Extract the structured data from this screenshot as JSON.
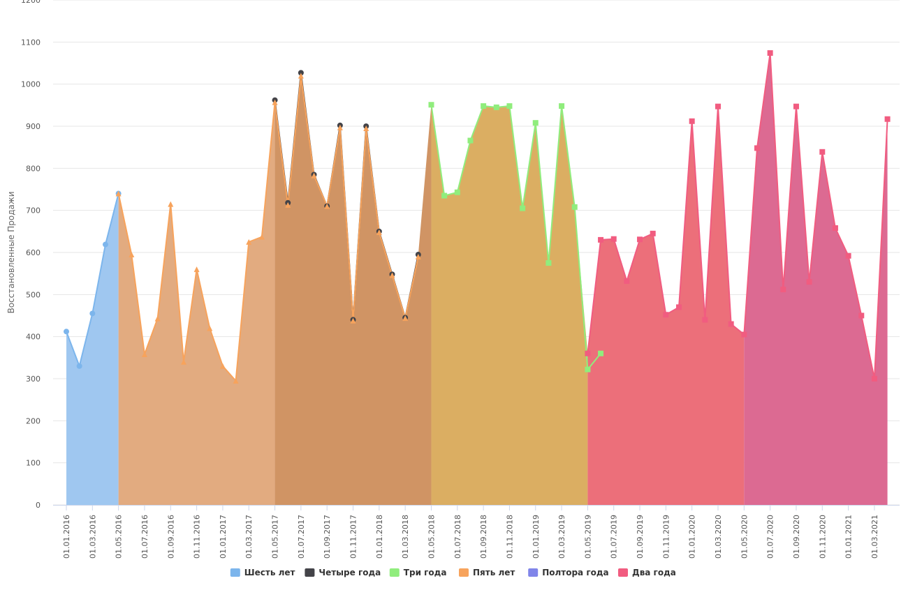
{
  "chart_data": {
    "type": "area",
    "ylabel": "Восстановленные Продажи",
    "ylim": [
      0,
      1200
    ],
    "yticks": [
      "0",
      "100",
      "200",
      "300",
      "400",
      "500",
      "600",
      "700",
      "800",
      "900",
      "1000",
      "1100",
      "1200"
    ],
    "xticks": [
      "01.01.2016",
      "01.03.2016",
      "01.05.2016",
      "01.07.2016",
      "01.09.2016",
      "01.11.2016",
      "01.01.2017",
      "01.03.2017",
      "01.05.2017",
      "01.07.2017",
      "01.09.2017",
      "01.11.2017",
      "01.01.2018",
      "01.03.2018",
      "01.05.2018",
      "01.07.2018",
      "01.09.2018",
      "01.11.2018",
      "01.01.2019",
      "01.03.2019",
      "01.05.2019",
      "01.07.2019",
      "01.09.2019",
      "01.11.2019",
      "01.01.2020",
      "01.03.2020",
      "01.05.2020",
      "01.07.2020",
      "01.09.2020",
      "01.11.2020",
      "01.01.2021",
      "01.03.2021"
    ],
    "x": [
      "01.01.2016",
      "01.02.2016",
      "01.03.2016",
      "01.04.2016",
      "01.05.2016",
      "01.06.2016",
      "01.07.2016",
      "01.08.2016",
      "01.09.2016",
      "01.10.2016",
      "01.11.2016",
      "01.12.2016",
      "01.01.2017",
      "01.02.2017",
      "01.03.2017",
      "01.04.2017",
      "01.05.2017",
      "01.06.2017",
      "01.07.2017",
      "01.08.2017",
      "01.09.2017",
      "01.10.2017",
      "01.11.2017",
      "01.12.2017",
      "01.01.2018",
      "01.02.2018",
      "01.03.2018",
      "01.04.2018",
      "01.05.2018",
      "01.06.2018",
      "01.07.2018",
      "01.08.2018",
      "01.09.2018",
      "01.10.2018",
      "01.11.2018",
      "01.12.2018",
      "01.01.2019",
      "01.02.2019",
      "01.03.2019",
      "01.04.2019",
      "01.05.2019",
      "01.06.2019",
      "01.07.2019",
      "01.08.2019",
      "01.09.2019",
      "01.10.2019",
      "01.11.2019",
      "01.12.2019",
      "01.01.2020",
      "01.02.2020",
      "01.03.2020",
      "01.04.2020",
      "01.05.2020",
      "01.06.2020",
      "01.07.2020",
      "01.08.2020",
      "01.09.2020",
      "01.10.2020",
      "01.11.2020",
      "01.12.2020",
      "01.01.2021",
      "01.02.2021",
      "01.03.2021",
      "01.04.2021"
    ],
    "grid": true,
    "legend_position": "bottom",
    "series": [
      {
        "name": "Шесть лет",
        "color": "#7cb5ec",
        "fill": "#9fc7f0",
        "marker": "circle",
        "values": [
          412,
          330,
          455,
          619,
          740,
          null,
          null,
          null,
          null,
          null,
          null,
          null,
          null,
          null,
          null,
          null,
          null,
          null,
          null,
          null,
          null,
          null,
          null,
          null,
          null,
          null,
          null,
          null,
          null,
          null,
          null,
          null,
          null,
          null,
          null,
          null,
          null,
          null,
          null,
          null,
          null,
          null,
          null,
          null,
          null,
          null,
          null,
          null,
          null,
          null,
          null,
          null,
          null,
          null,
          null,
          null,
          null,
          null,
          null,
          null,
          null,
          null,
          null,
          null
        ]
      },
      {
        "name": "Четыре года",
        "color": "#434348",
        "fill": "#d09464",
        "marker": "circle",
        "values": [
          null,
          null,
          null,
          null,
          null,
          null,
          null,
          null,
          null,
          null,
          null,
          null,
          null,
          null,
          null,
          null,
          962,
          718,
          1027,
          785,
          710,
          902,
          440,
          900,
          650,
          548,
          445,
          595,
          null,
          null,
          null,
          null,
          null,
          null,
          null,
          null,
          null,
          null,
          null,
          null,
          null,
          null,
          null,
          null,
          null,
          null,
          null,
          null,
          null,
          null,
          null,
          null,
          null,
          null,
          null,
          null,
          null,
          null,
          null,
          null,
          null,
          null,
          null,
          null
        ]
      },
      {
        "name": "Три года",
        "color": "#90ed7d",
        "fill": "#dbae62",
        "marker": "square",
        "values": [
          null,
          null,
          null,
          null,
          null,
          null,
          null,
          null,
          null,
          null,
          null,
          null,
          null,
          null,
          null,
          null,
          null,
          null,
          null,
          null,
          null,
          null,
          null,
          null,
          null,
          null,
          null,
          null,
          951,
          735,
          743,
          866,
          948,
          945,
          948,
          705,
          908,
          575,
          948,
          708,
          322,
          360,
          null,
          null,
          null,
          null,
          null,
          null,
          null,
          null,
          null,
          null,
          null,
          null,
          null,
          null,
          null,
          null,
          null,
          null,
          null,
          null,
          null,
          null
        ]
      },
      {
        "name": "Пять лет",
        "color": "#f7a35c",
        "fill": "#e2ab80",
        "marker": "triangle",
        "values": [
          null,
          null,
          null,
          null,
          740,
          595,
          358,
          443,
          715,
          340,
          560,
          420,
          330,
          295,
          625,
          637,
          957,
          713,
          1020,
          783,
          710,
          897,
          438,
          895,
          648,
          546,
          444,
          590,
          null,
          null,
          null,
          null,
          null,
          null,
          null,
          null,
          null,
          null,
          null,
          null,
          null,
          null,
          null,
          null,
          null,
          null,
          null,
          null,
          null,
          null,
          null,
          null,
          null,
          null,
          null,
          null,
          null,
          null,
          null,
          null,
          null,
          null,
          null,
          null
        ]
      },
      {
        "name": "Полтора года",
        "color": "#8085e9",
        "fill": "#8085e9",
        "marker": "diamond",
        "values": [
          null,
          null,
          null,
          null,
          null,
          null,
          null,
          null,
          null,
          null,
          null,
          null,
          null,
          null,
          null,
          null,
          null,
          null,
          null,
          null,
          null,
          null,
          null,
          null,
          null,
          null,
          null,
          null,
          null,
          null,
          null,
          null,
          null,
          null,
          null,
          null,
          null,
          null,
          null,
          null,
          null,
          null,
          null,
          null,
          null,
          null,
          null,
          null,
          null,
          null,
          null,
          null,
          null,
          null,
          null,
          null,
          null,
          null,
          null,
          null,
          null,
          null,
          null,
          null
        ]
      },
      {
        "name": "Два года",
        "color": "#f15c80",
        "fill": "#ec6f7a",
        "marker": "square",
        "values": [
          null,
          null,
          null,
          null,
          null,
          null,
          null,
          null,
          null,
          null,
          null,
          null,
          null,
          null,
          null,
          null,
          null,
          null,
          null,
          null,
          null,
          null,
          null,
          null,
          null,
          null,
          null,
          null,
          null,
          null,
          null,
          null,
          null,
          null,
          null,
          null,
          null,
          null,
          null,
          null,
          360,
          630,
          632,
          532,
          631,
          645,
          452,
          470,
          912,
          440,
          947,
          430,
          405,
          848,
          1074,
          512,
          947,
          530,
          839,
          658,
          592,
          450,
          300,
          917
        ]
      }
    ],
    "segment_fills": [
      {
        "from": 0,
        "to": 4,
        "color": "#9fc7f0"
      },
      {
        "from": 4,
        "to": 16,
        "color": "#e2ab80"
      },
      {
        "from": 16,
        "to": 28,
        "color": "#d09464"
      },
      {
        "from": 28,
        "to": 40,
        "color": "#dbae62"
      },
      {
        "from": 40,
        "to": 52,
        "color": "#ec6f7a"
      },
      {
        "from": 52,
        "to": 63,
        "color": "#dc6a92"
      }
    ]
  }
}
